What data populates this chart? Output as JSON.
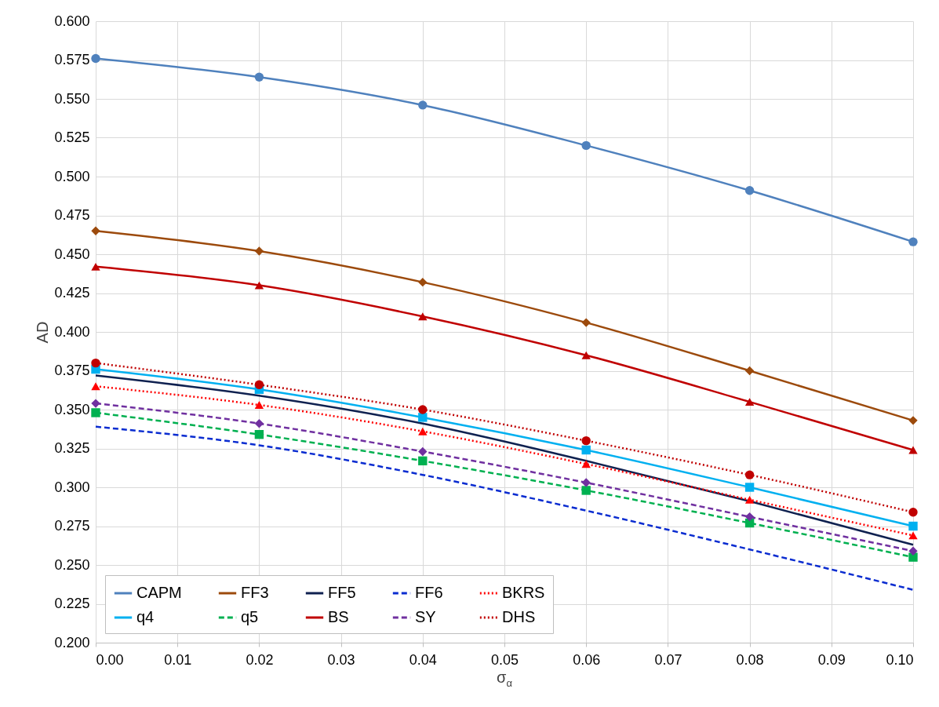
{
  "chart_data": {
    "type": "line",
    "xlabel": "σ$_{α}$",
    "ylabel": "AD",
    "x": [
      0.0,
      0.02,
      0.04,
      0.06,
      0.08,
      0.1
    ],
    "xlim": [
      0.0,
      0.1
    ],
    "xticks": [
      {
        "value": 0,
        "label": "0.00"
      },
      0.01,
      0.02,
      0.03,
      0.04,
      0.05,
      0.06,
      0.07,
      0.08,
      0.09,
      {
        "value": 0.1,
        "label": "0.10"
      }
    ],
    "ylim": [
      0.2,
      0.6
    ],
    "yticks": [
      {
        "value": 0.2,
        "label": "0.200"
      },
      0.225,
      {
        "value": 0.25,
        "label": "0.250"
      },
      0.275,
      {
        "value": 0.3,
        "label": "0.300"
      },
      0.325,
      {
        "value": 0.35,
        "label": "0.350"
      },
      0.375,
      {
        "value": 0.4,
        "label": "0.400"
      },
      0.425,
      {
        "value": 0.45,
        "label": "0.450"
      },
      0.475,
      {
        "value": 0.5,
        "label": "0.500"
      },
      0.525,
      {
        "value": 0.55,
        "label": "0.550"
      },
      0.575,
      {
        "value": 0.6,
        "label": "0.600"
      }
    ],
    "grid": true,
    "legend": "bottom left",
    "series": [
      {
        "name": "CAPM",
        "color": "#4f81bd",
        "marker": "circle",
        "line_style": "solid",
        "values": [
          0.576,
          0.564,
          0.546,
          0.52,
          0.491,
          0.458
        ]
      },
      {
        "name": "FF3",
        "color": "#9c4a0c",
        "marker": "diamond",
        "line_style": "solid",
        "values": [
          0.465,
          0.452,
          0.432,
          0.406,
          0.375,
          0.343
        ]
      },
      {
        "name": "FF5",
        "color": "#0f2150",
        "marker": "none",
        "line_style": "solid",
        "values": [
          0.372,
          0.359,
          0.341,
          0.317,
          0.291,
          0.263
        ]
      },
      {
        "name": "FF6",
        "color": "#0a2cd0",
        "marker": "none",
        "line_style": "dashed",
        "values": [
          0.339,
          0.327,
          0.308,
          0.285,
          0.26,
          0.234
        ]
      },
      {
        "name": "BKRS",
        "color": "#ff0000",
        "marker": "triangle",
        "line_style": "dotted",
        "values": [
          0.365,
          0.353,
          0.336,
          0.315,
          0.292,
          0.269
        ]
      },
      {
        "name": "q4",
        "color": "#00b0f0",
        "marker": "square",
        "line_style": "solid",
        "values": [
          0.376,
          0.363,
          0.345,
          0.324,
          0.3,
          0.275
        ]
      },
      {
        "name": "q5",
        "color": "#00b050",
        "marker": "square",
        "line_style": "dashed",
        "values": [
          0.348,
          0.334,
          0.317,
          0.298,
          0.277,
          0.255
        ]
      },
      {
        "name": "BS",
        "color": "#c00000",
        "marker": "triangle",
        "line_style": "solid",
        "values": [
          0.442,
          0.43,
          0.41,
          0.385,
          0.355,
          0.324
        ]
      },
      {
        "name": "SY",
        "color": "#7030a0",
        "marker": "diamond",
        "line_style": "dashed",
        "values": [
          0.354,
          0.341,
          0.323,
          0.303,
          0.281,
          0.259
        ]
      },
      {
        "name": "DHS",
        "color": "#c00000",
        "marker": "circle",
        "line_style": "dotted",
        "values": [
          0.38,
          0.366,
          0.35,
          0.33,
          0.308,
          0.284
        ]
      }
    ]
  }
}
